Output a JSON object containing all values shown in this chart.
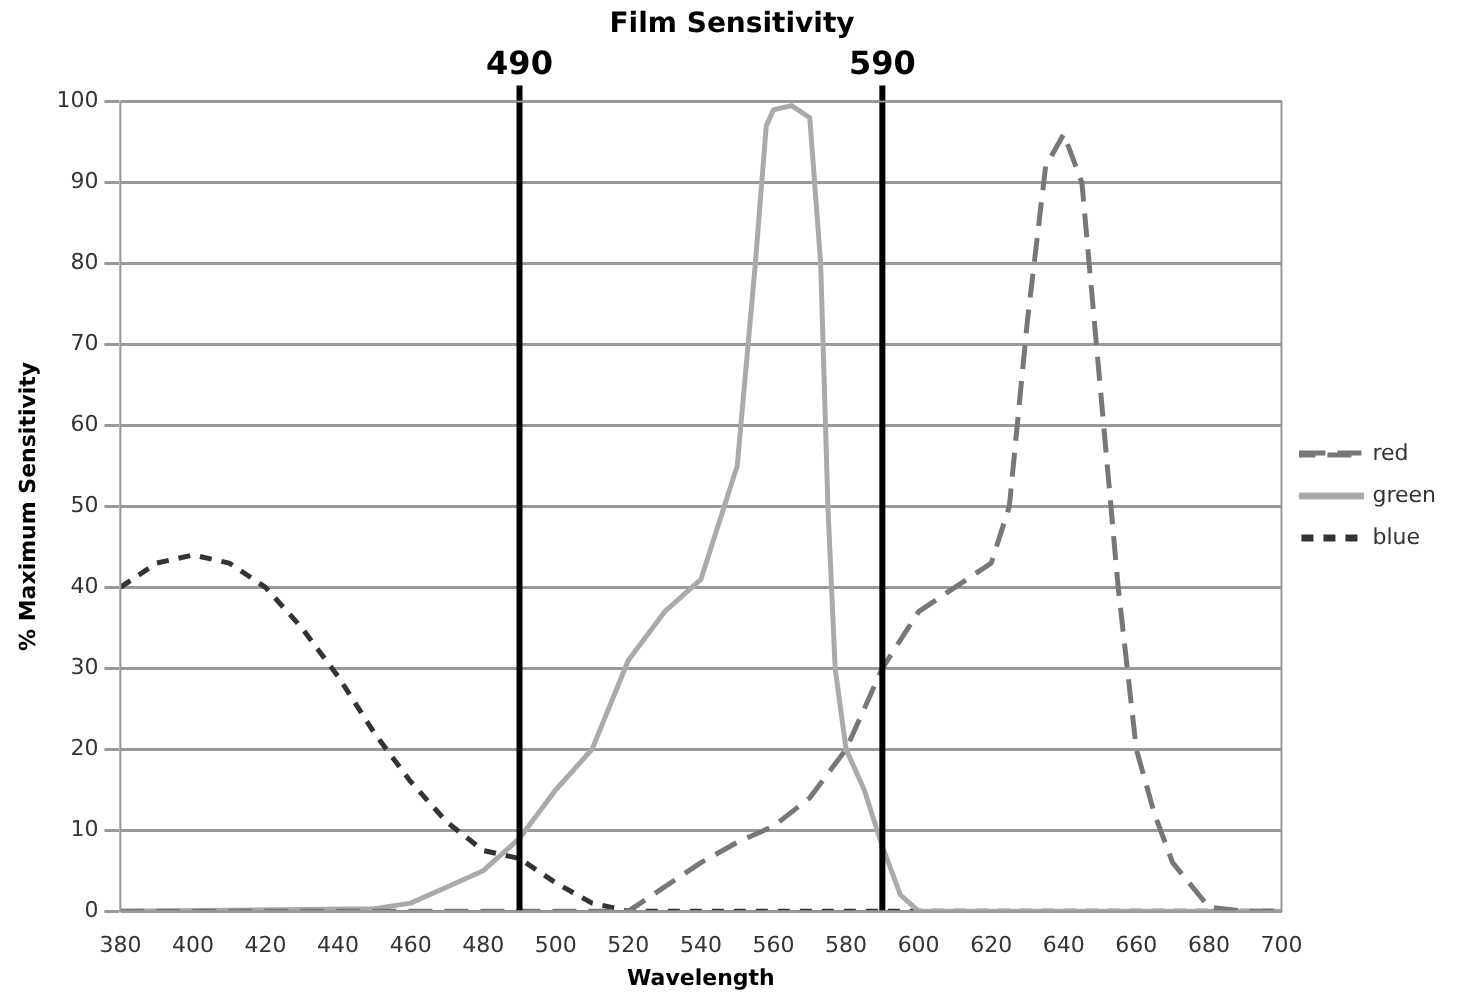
{
  "chart_data": {
    "type": "line",
    "title": "Film Sensitivity",
    "xlabel": "Wavelength",
    "ylabel": "% Maximum Sensitivity",
    "xlim": [
      380,
      700
    ],
    "xticks": [
      380,
      400,
      420,
      440,
      460,
      480,
      500,
      520,
      540,
      560,
      580,
      600,
      620,
      640,
      660,
      680,
      700
    ],
    "ylim": [
      0,
      100
    ],
    "yticks": [
      0,
      10,
      20,
      30,
      40,
      50,
      60,
      70,
      80,
      90,
      100
    ],
    "grid": "y",
    "legend": "right",
    "marker": "none",
    "series": [
      {
        "name": "red",
        "color": "#777777",
        "line_style": "dashed",
        "x": [
          380,
          520,
          530,
          540,
          550,
          560,
          570,
          580,
          590,
          600,
          610,
          620,
          625,
          630,
          635,
          640,
          645,
          650,
          655,
          660,
          665,
          670,
          680,
          690,
          700
        ],
        "values": [
          0,
          0,
          3,
          6,
          8.5,
          10.5,
          14,
          20,
          30,
          37,
          40,
          43,
          50,
          73,
          92,
          96,
          90,
          65,
          40,
          20,
          12,
          6,
          0.5,
          0,
          0
        ]
      },
      {
        "name": "green",
        "color": "#aaaaaa",
        "line_style": "solid",
        "x": [
          380,
          450,
          460,
          470,
          480,
          490,
          500,
          510,
          520,
          530,
          540,
          550,
          555,
          558,
          560,
          565,
          570,
          573,
          575,
          577,
          580,
          585,
          590,
          595,
          600,
          700
        ],
        "values": [
          0,
          0.3,
          1,
          3,
          5,
          9,
          15,
          20,
          31,
          37,
          41,
          55,
          80,
          97,
          99,
          99.5,
          98,
          80,
          50,
          30,
          20,
          15,
          8,
          2,
          0,
          0
        ]
      },
      {
        "name": "blue",
        "color": "#333333",
        "line_style": "dotted",
        "x": [
          380,
          390,
          400,
          410,
          420,
          430,
          440,
          450,
          460,
          470,
          480,
          490,
          500,
          510,
          520,
          540,
          700
        ],
        "values": [
          40,
          43,
          44,
          43,
          40,
          35,
          29,
          22,
          16,
          11,
          7.5,
          6.5,
          3.5,
          1,
          0,
          0,
          0
        ]
      }
    ],
    "ref_lines": [
      {
        "axis": "x",
        "value": 490,
        "label": "490",
        "color": "#000000"
      },
      {
        "axis": "x",
        "value": 590,
        "label": "590",
        "color": "#000000"
      }
    ]
  }
}
